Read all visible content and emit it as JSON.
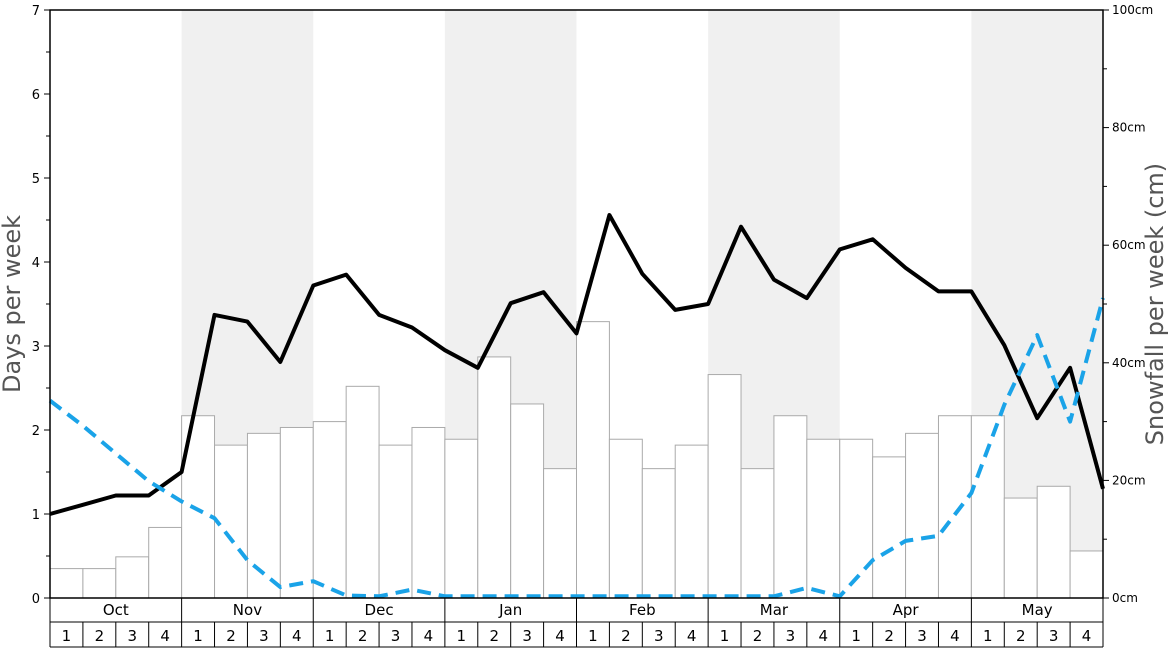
{
  "chart_data": {
    "type": "bar",
    "ylabel_left": "Days per week",
    "ylabel_right": "Snowfall per week (cm)",
    "ylim_left": [
      0,
      7
    ],
    "ylim_right": [
      0,
      100
    ],
    "yticks_left": [
      "0",
      "1",
      "2",
      "3",
      "4",
      "5",
      "6",
      "7"
    ],
    "yticks_right": [
      "0cm",
      "20cm",
      "40cm",
      "60cm",
      "80cm",
      "100cm"
    ],
    "months": [
      "Oct",
      "Nov",
      "Dec",
      "Jan",
      "Feb",
      "Mar",
      "Apr",
      "May"
    ],
    "week_labels": [
      "1",
      "2",
      "3",
      "4"
    ],
    "shaded_months": [
      "Nov",
      "Jan",
      "Mar",
      "May"
    ],
    "grid": false,
    "series": [
      {
        "kind": "bar",
        "axis": "right",
        "units": "cm",
        "values": [
          5,
          5,
          7,
          12,
          31,
          26,
          28,
          29,
          30,
          36,
          26,
          29,
          27,
          41,
          33,
          22,
          47,
          27,
          22,
          26,
          38,
          22,
          31,
          27,
          27,
          24,
          28,
          31,
          31,
          17,
          19,
          8
        ],
        "color": "#ffffff",
        "stroke": "#aaaaaa"
      },
      {
        "kind": "line",
        "axis": "left",
        "style": "solid",
        "color": "#000000",
        "values": [
          1.0,
          1.11,
          1.22,
          1.22,
          1.5,
          3.37,
          3.29,
          2.81,
          3.72,
          3.85,
          3.37,
          3.22,
          2.95,
          2.74,
          3.51,
          3.64,
          3.15,
          4.56,
          3.86,
          3.43,
          3.5,
          4.42,
          3.79,
          3.57,
          4.15,
          4.27,
          3.93,
          3.65,
          3.65,
          3.01,
          2.14,
          2.74,
          1.3
        ]
      },
      {
        "kind": "line",
        "axis": "left",
        "style": "dashed",
        "color": "#1aa3e8",
        "values": [
          2.35,
          2.05,
          1.72,
          1.39,
          1.15,
          0.95,
          0.45,
          0.13,
          0.2,
          0.03,
          0.02,
          0.1,
          0.02,
          0.02,
          0.02,
          0.02,
          0.02,
          0.02,
          0.02,
          0.02,
          0.02,
          0.02,
          0.02,
          0.12,
          0.02,
          0.45,
          0.68,
          0.74,
          1.25,
          2.3,
          3.13,
          2.1,
          3.57
        ]
      }
    ]
  }
}
